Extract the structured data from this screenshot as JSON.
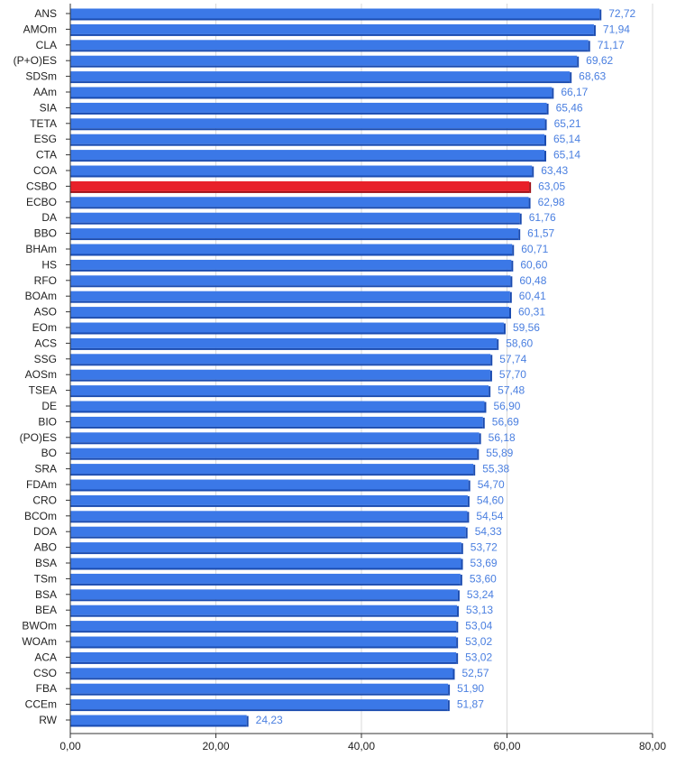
{
  "chart_data": {
    "type": "bar",
    "orientation": "horizontal",
    "categories": [
      "ANS",
      "AMOm",
      "CLA",
      "(P+O)ES",
      "SDSm",
      "AAm",
      "SIA",
      "TETA",
      "ESG",
      "CTA",
      "COA",
      "CSBO",
      "ECBO",
      "DA",
      "BBO",
      "BHAm",
      "HS",
      "RFO",
      "BOAm",
      "ASO",
      "EOm",
      "ACS",
      "SSG",
      "AOSm",
      "TSEA",
      "DE",
      "BIO",
      "(PO)ES",
      "BO",
      "SRA",
      "FDAm",
      "CRO",
      "BCOm",
      "DOA",
      "ABO",
      "BSA",
      "TSm",
      "BSA",
      "BEA",
      "BWOm",
      "WOAm",
      "ACA",
      "CSO",
      "FBA",
      "CCEm",
      "RW"
    ],
    "values": [
      72.72,
      71.94,
      71.17,
      69.62,
      68.63,
      66.17,
      65.46,
      65.21,
      65.14,
      65.14,
      63.43,
      63.05,
      62.98,
      61.76,
      61.57,
      60.71,
      60.6,
      60.48,
      60.41,
      60.31,
      59.56,
      58.6,
      57.74,
      57.7,
      57.48,
      56.9,
      56.69,
      56.18,
      55.89,
      55.38,
      54.7,
      54.6,
      54.54,
      54.33,
      53.72,
      53.69,
      53.6,
      53.24,
      53.13,
      53.04,
      53.02,
      53.02,
      52.57,
      51.9,
      51.87,
      24.23
    ],
    "value_labels": [
      "72,72",
      "71,94",
      "71,17",
      "69,62",
      "68,63",
      "66,17",
      "65,46",
      "65,21",
      "65,14",
      "65,14",
      "63,43",
      "63,05",
      "62,98",
      "61,76",
      "61,57",
      "60,71",
      "60,60",
      "60,48",
      "60,41",
      "60,31",
      "59,56",
      "58,60",
      "57,74",
      "57,70",
      "57,48",
      "56,90",
      "56,69",
      "56,18",
      "55,89",
      "55,38",
      "54,70",
      "54,60",
      "54,54",
      "54,33",
      "53,72",
      "53,69",
      "53,60",
      "53,24",
      "53,13",
      "53,04",
      "53,02",
      "53,02",
      "52,57",
      "51,90",
      "51,87",
      "24,23"
    ],
    "highlight_index": 11,
    "xlim": [
      0,
      80
    ],
    "x_ticks": [
      0,
      20,
      40,
      60,
      80
    ],
    "x_tick_labels": [
      "0,00",
      "20,00",
      "40,00",
      "60,00",
      "80,00"
    ],
    "grid": "vertical",
    "colors": {
      "bar": "#3b78e7",
      "bar_dark": "#1a4bb0",
      "highlight": "#e8202a",
      "highlight_dark": "#a01018",
      "value_label": "#4a7fe0",
      "grid": "#d9d9d9",
      "axis": "#333333"
    }
  }
}
